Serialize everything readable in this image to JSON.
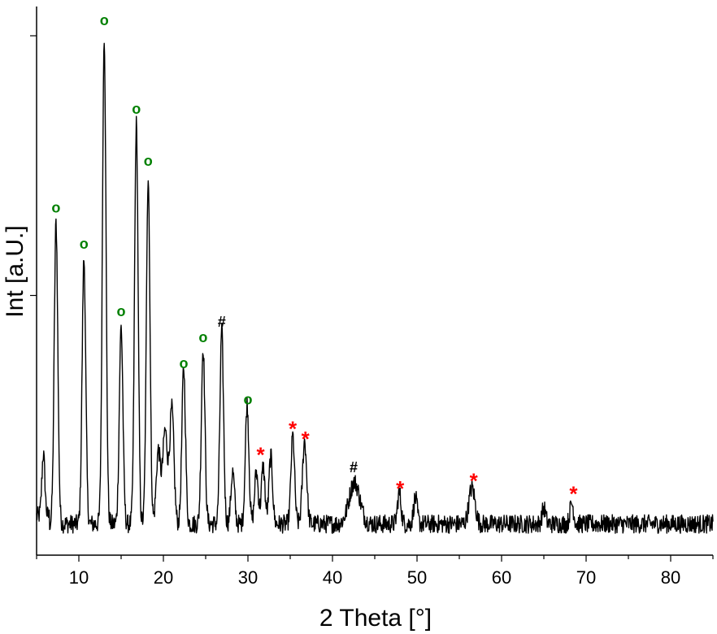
{
  "chart_data": {
    "type": "line",
    "title": "",
    "xlabel": "2 Theta [°]",
    "ylabel": "Int [a.U.]",
    "xlim": [
      5,
      85
    ],
    "ylim": [
      0,
      100
    ],
    "x_ticks": [
      10,
      20,
      30,
      40,
      50,
      60,
      70,
      80
    ],
    "x_tick_labels": [
      "10",
      "20",
      "30",
      "40",
      "50",
      "60",
      "70",
      "80"
    ],
    "y_tick_values": [
      50,
      100
    ],
    "y_tick_labels_shown": false,
    "grid": false,
    "legend": "none",
    "line_color": "#000000",
    "baseline": 6,
    "noise_amplitude": 1.8,
    "peaks": [
      {
        "x": 5.8,
        "height": 12,
        "width": 0.25
      },
      {
        "x": 7.3,
        "height": 58,
        "width": 0.3
      },
      {
        "x": 10.6,
        "height": 51,
        "width": 0.3
      },
      {
        "x": 13.0,
        "height": 94,
        "width": 0.3
      },
      {
        "x": 15.0,
        "height": 38,
        "width": 0.3
      },
      {
        "x": 16.8,
        "height": 77,
        "width": 0.3
      },
      {
        "x": 18.2,
        "height": 67,
        "width": 0.3
      },
      {
        "x": 19.4,
        "height": 14,
        "width": 0.35
      },
      {
        "x": 20.2,
        "height": 18,
        "width": 0.4
      },
      {
        "x": 21.0,
        "height": 22,
        "width": 0.35
      },
      {
        "x": 22.4,
        "height": 30,
        "width": 0.3
      },
      {
        "x": 24.7,
        "height": 34,
        "width": 0.3
      },
      {
        "x": 26.9,
        "height": 37,
        "width": 0.3
      },
      {
        "x": 28.2,
        "height": 10,
        "width": 0.3
      },
      {
        "x": 29.9,
        "height": 23,
        "width": 0.3
      },
      {
        "x": 31.0,
        "height": 10,
        "width": 0.3
      },
      {
        "x": 31.8,
        "height": 11,
        "width": 0.3
      },
      {
        "x": 32.7,
        "height": 13,
        "width": 0.3
      },
      {
        "x": 35.3,
        "height": 17,
        "width": 0.3
      },
      {
        "x": 36.7,
        "height": 16,
        "width": 0.35
      },
      {
        "x": 42.6,
        "height": 8,
        "width": 0.9
      },
      {
        "x": 47.9,
        "height": 6,
        "width": 0.3
      },
      {
        "x": 49.8,
        "height": 5,
        "width": 0.3
      },
      {
        "x": 56.5,
        "height": 7,
        "width": 0.5
      },
      {
        "x": 65.0,
        "height": 3,
        "width": 0.3
      },
      {
        "x": 68.3,
        "height": 4,
        "width": 0.3
      }
    ],
    "annotations": [
      {
        "symbol": "o",
        "x": 7.3,
        "y": 66,
        "color": "#008000"
      },
      {
        "symbol": "o",
        "x": 10.6,
        "y": 59,
        "color": "#008000"
      },
      {
        "symbol": "o",
        "x": 13.0,
        "y": 102,
        "color": "#008000"
      },
      {
        "symbol": "o",
        "x": 15.0,
        "y": 46,
        "color": "#008000"
      },
      {
        "symbol": "o",
        "x": 16.8,
        "y": 85,
        "color": "#008000"
      },
      {
        "symbol": "o",
        "x": 18.2,
        "y": 75,
        "color": "#008000"
      },
      {
        "symbol": "o",
        "x": 22.4,
        "y": 36,
        "color": "#008000"
      },
      {
        "symbol": "o",
        "x": 24.7,
        "y": 41,
        "color": "#008000"
      },
      {
        "symbol": "#",
        "x": 26.9,
        "y": 44,
        "color": "#000000"
      },
      {
        "symbol": "o",
        "x": 30.0,
        "y": 29,
        "color": "#008000"
      },
      {
        "symbol": "*",
        "x": 31.5,
        "y": 19.5,
        "color": "#ff0000"
      },
      {
        "symbol": "*",
        "x": 35.3,
        "y": 24.5,
        "color": "#ff0000"
      },
      {
        "symbol": "*",
        "x": 36.8,
        "y": 22.5,
        "color": "#ff0000"
      },
      {
        "symbol": "#",
        "x": 42.5,
        "y": 16,
        "color": "#000000"
      },
      {
        "symbol": "*",
        "x": 48.0,
        "y": 13,
        "color": "#ff0000"
      },
      {
        "symbol": "*",
        "x": 56.7,
        "y": 14.5,
        "color": "#ff0000"
      },
      {
        "symbol": "*",
        "x": 68.5,
        "y": 12,
        "color": "#ff0000"
      }
    ]
  }
}
